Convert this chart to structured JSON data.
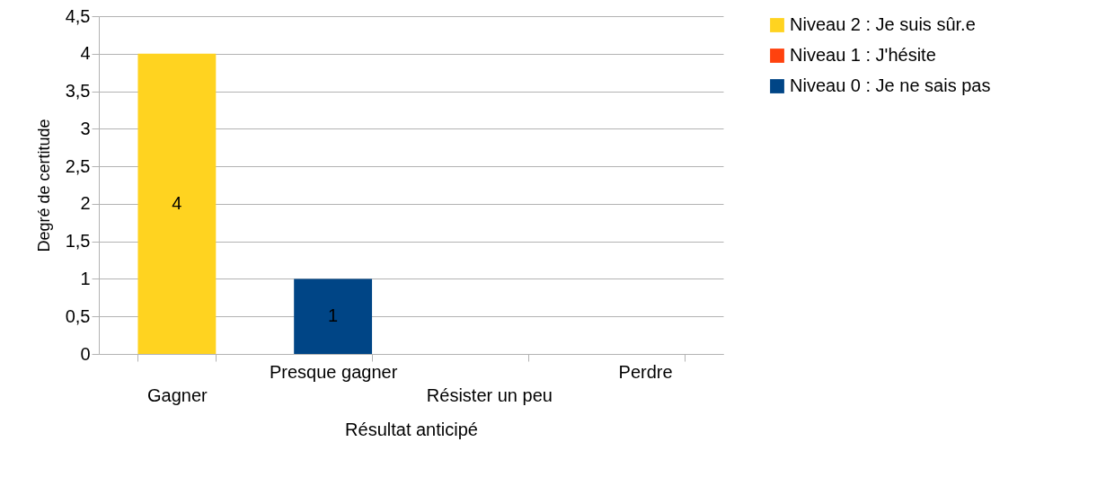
{
  "chart_data": {
    "type": "bar",
    "stacked": true,
    "xlabel": "Résultat anticipé",
    "ylabel": "Degré de certitude",
    "categories": [
      "Gagner",
      "Presque gagner",
      "Résister un peu",
      "Perdre"
    ],
    "series": [
      {
        "name": "Niveau 2 : Je suis sûr.e",
        "color": "#ffd320",
        "values": [
          4,
          null,
          null,
          null
        ]
      },
      {
        "name": "Niveau 1 : J'hésite",
        "color": "#ff420e",
        "values": [
          null,
          null,
          null,
          null
        ]
      },
      {
        "name": "Niveau 0 : Je ne sais pas",
        "color": "#004586",
        "values": [
          null,
          1,
          null,
          null
        ]
      }
    ],
    "ylim": [
      0,
      4.5
    ],
    "yticks": [
      0,
      {
        "value": 0.5,
        "label": "0,5"
      },
      1,
      {
        "value": 1.5,
        "label": "1,5"
      },
      2,
      {
        "value": 2.5,
        "label": "2,5"
      },
      3,
      {
        "value": 3.5,
        "label": "3,5"
      },
      4,
      {
        "value": 4.5,
        "label": "4,5"
      }
    ],
    "grid": "y",
    "legend": "right",
    "data_labels": true
  }
}
